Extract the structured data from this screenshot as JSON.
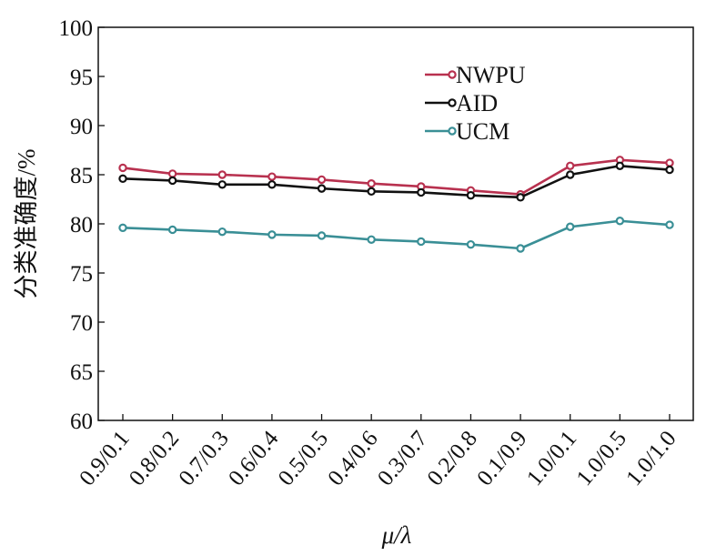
{
  "chart_data": {
    "type": "line",
    "title": "",
    "xlabel": "μ/λ",
    "ylabel": "分类准确度/%",
    "ylim": [
      60,
      100
    ],
    "yticks": [
      60,
      65,
      70,
      75,
      80,
      85,
      90,
      95,
      100
    ],
    "grid": false,
    "legend_position": "top-right",
    "categories": [
      "0.9/0.1",
      "0.8/0.2",
      "0.7/0.3",
      "0.6/0.4",
      "0.5/0.5",
      "0.4/0.6",
      "0.3/0.7",
      "0.2/0.8",
      "0.1/0.9",
      "1.0/0.1",
      "1.0/0.5",
      "1.0/1.0"
    ],
    "series": [
      {
        "name": "NWPU",
        "color": "#b8314f",
        "values": [
          85.7,
          85.1,
          85.0,
          84.8,
          84.5,
          84.1,
          83.8,
          83.4,
          83.0,
          85.9,
          86.5,
          86.2
        ]
      },
      {
        "name": "AID",
        "color": "#111111",
        "values": [
          84.6,
          84.4,
          84.0,
          84.0,
          83.6,
          83.3,
          83.2,
          82.9,
          82.7,
          85.0,
          85.9,
          85.5
        ]
      },
      {
        "name": "UCM",
        "color": "#3a8f96",
        "values": [
          79.6,
          79.4,
          79.2,
          78.9,
          78.8,
          78.4,
          78.2,
          77.9,
          77.5,
          79.7,
          80.3,
          79.9
        ]
      }
    ]
  }
}
